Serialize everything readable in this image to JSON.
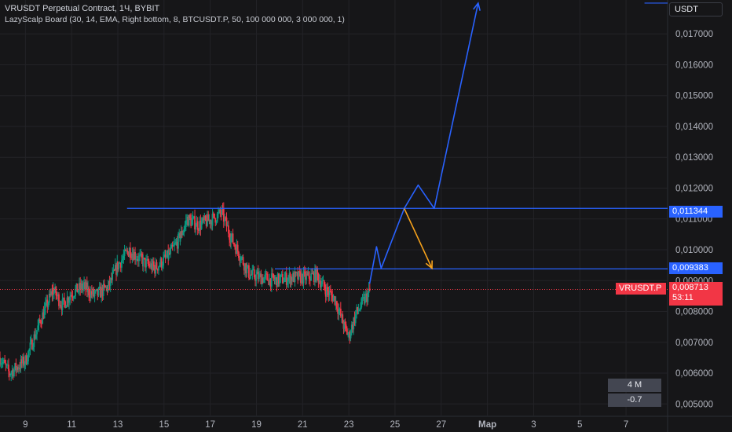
{
  "header": {
    "title": "VRUSDT Perpetual Contract, 1Ч, BYBIT",
    "indicator": "LazyScalp Board (30, 14, EMA, Right bottom, 8, BTCUSDT.P, 50, 100 000 000, 3 000 000, 1)"
  },
  "currency_button": "USDT",
  "price_labels": {
    "level_upper": "0,011344",
    "level_lower": "0,009383",
    "symbol_tag": "VRUSDT.P",
    "current_price": "0,008713",
    "countdown": "53:11"
  },
  "stats": {
    "row1": "4 M",
    "row2": "-0.7"
  },
  "colors": {
    "background": "#161618",
    "grid": "#232327",
    "candle_up": "#089981",
    "candle_down": "#f23645",
    "projection_blue": "#2962ff",
    "projection_orange": "#f7a21b"
  },
  "chart_data": {
    "type": "candlestick",
    "x_ticks": [
      "9",
      "11",
      "13",
      "15",
      "17",
      "19",
      "21",
      "23",
      "25",
      "27",
      "Мар",
      "3",
      "5",
      "7"
    ],
    "y_ticks": [
      "0,005000",
      "0,006000",
      "0,007000",
      "0,008000",
      "0,009000",
      "0,010000",
      "0,011000",
      "0,012000",
      "0,013000",
      "0,014000",
      "0,015000",
      "0,016000",
      "0,017000"
    ],
    "ylim": [
      0.0046,
      0.0181
    ],
    "x_range": [
      7.9,
      36.8
    ],
    "last_price": 0.008713,
    "horizontal_levels": [
      {
        "price": 0.011344,
        "x_from": 13.4
      },
      {
        "price": 0.009383,
        "x_from": 19.8
      },
      {
        "price": 0.018,
        "x_from": 35.8
      }
    ],
    "bullish_path": [
      [
        23.9,
        0.0089
      ],
      [
        24.2,
        0.0101
      ],
      [
        24.4,
        0.0094
      ],
      [
        25.4,
        0.01134
      ],
      [
        26.0,
        0.0121
      ],
      [
        26.7,
        0.01134
      ],
      [
        28.6,
        0.018
      ]
    ],
    "bearish_path": [
      [
        25.4,
        0.01134
      ],
      [
        26.6,
        0.0094
      ]
    ],
    "candle_anchors": [
      [
        7.9,
        0.0065
      ],
      [
        8.3,
        0.006
      ],
      [
        9.0,
        0.0064
      ],
      [
        9.7,
        0.0078
      ],
      [
        10.2,
        0.0087
      ],
      [
        10.6,
        0.0082
      ],
      [
        11.0,
        0.0086
      ],
      [
        11.5,
        0.0088
      ],
      [
        12.0,
        0.0085
      ],
      [
        12.6,
        0.0088
      ],
      [
        13.0,
        0.0095
      ],
      [
        13.5,
        0.01
      ],
      [
        14.1,
        0.0096
      ],
      [
        14.6,
        0.0094
      ],
      [
        15.2,
        0.0098
      ],
      [
        15.7,
        0.0104
      ],
      [
        16.0,
        0.011
      ],
      [
        16.5,
        0.0108
      ],
      [
        17.1,
        0.011
      ],
      [
        17.5,
        0.0112
      ],
      [
        17.9,
        0.0104
      ],
      [
        18.3,
        0.0098
      ],
      [
        18.7,
        0.0092
      ],
      [
        19.2,
        0.0091
      ],
      [
        19.8,
        0.009
      ],
      [
        20.5,
        0.0091
      ],
      [
        21.2,
        0.0091
      ],
      [
        21.6,
        0.0092
      ],
      [
        22.0,
        0.0087
      ],
      [
        22.4,
        0.0084
      ],
      [
        22.8,
        0.0075
      ],
      [
        23.0,
        0.0072
      ],
      [
        23.3,
        0.0079
      ],
      [
        23.7,
        0.0084
      ],
      [
        23.95,
        0.0087
      ]
    ]
  }
}
